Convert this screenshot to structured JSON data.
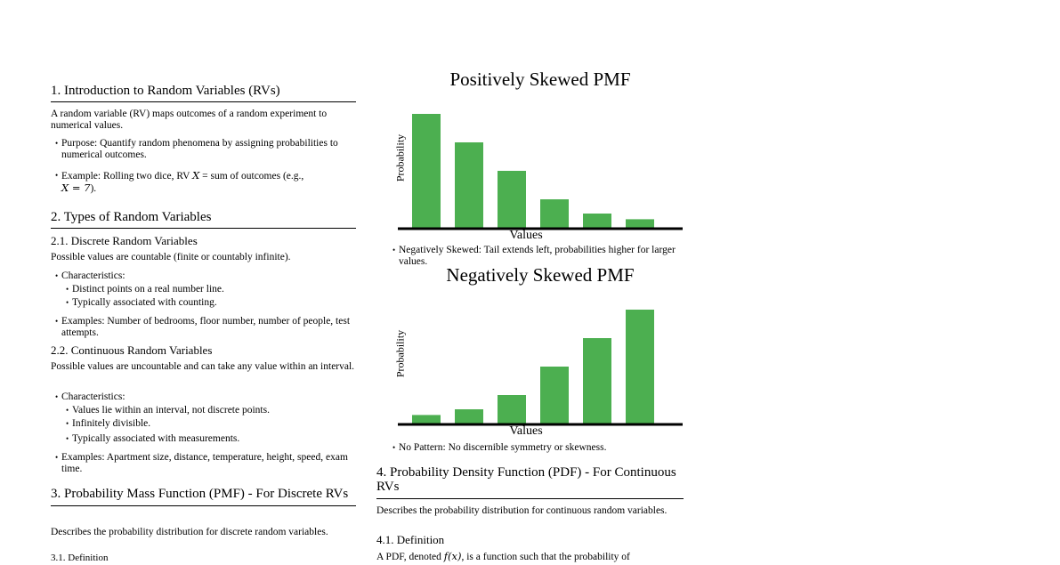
{
  "left": {
    "s1_title": "1. Introduction to Random Variables (RVs)",
    "s1_p": "A random variable (RV) maps outcomes of a random experiment to numerical values.",
    "s1_b1": "Purpose: Quantify random phenomena by assigning probabilities to numerical outcomes.",
    "s1_b2_pre": "Example: Rolling two dice, RV ",
    "s1_b2_var": "X",
    "s1_b2_mid": " = sum of outcomes (e.g.,",
    "s1_b2_eq": "X = 7",
    "s1_b2_end": ").",
    "s2_title": "2. Types of Random Variables",
    "s21_title": "2.1. Discrete Random Variables",
    "s21_p": "Possible values are countable (finite or countably infinite).",
    "s21_char": "Characteristics:",
    "s21_c1": "Distinct points on a real number line.",
    "s21_c2": "Typically associated with counting.",
    "s21_ex": "Examples: Number of bedrooms, floor number, number of people, test attempts.",
    "s22_title": "2.2. Continuous Random Variables",
    "s22_p": "Possible values are uncountable and can take any value within an interval.",
    "s22_char": "Characteristics:",
    "s22_c1": "Values lie within an interval, not discrete points.",
    "s22_c2": "Infinitely divisible.",
    "s22_c3": "Typically associated with measurements.",
    "s22_ex": "Examples: Apartment size, distance, temperature, height, speed, exam time.",
    "s3_title": "3. Probability Mass Function (PMF) - For Discrete RVs",
    "s3_p": "Describes the probability distribution for discrete random variables.",
    "s31_partial": "3.1. Definition"
  },
  "right": {
    "note1": "Negatively Skewed: Tail extends left, probabilities higher for larger values.",
    "note2": "No Pattern: No discernible symmetry or skewness.",
    "s4_title": "4. Probability Density Function (PDF) - For Continuous RVs",
    "s4_p": "Describes the probability distribution for continuous random variables.",
    "s41_title": "4.1. Definition",
    "s41_p_pre": "A PDF, denoted ",
    "s41_p_fx": "f(x)",
    "s41_p_post": ", is a function such that the probability of"
  },
  "chart_data": [
    {
      "type": "bar",
      "title": "Positively Skewed PMF",
      "xlabel": "Values",
      "ylabel": "Probability",
      "values": [
        0.4,
        0.3,
        0.2,
        0.1,
        0.05,
        0.03
      ],
      "ylim": [
        0,
        0.4
      ],
      "color": "#4caf50"
    },
    {
      "type": "bar",
      "title": "Negatively Skewed PMF",
      "xlabel": "Values",
      "ylabel": "Probability",
      "values": [
        0.03,
        0.05,
        0.1,
        0.2,
        0.3,
        0.4
      ],
      "ylim": [
        0,
        0.4
      ],
      "color": "#4caf50"
    }
  ]
}
